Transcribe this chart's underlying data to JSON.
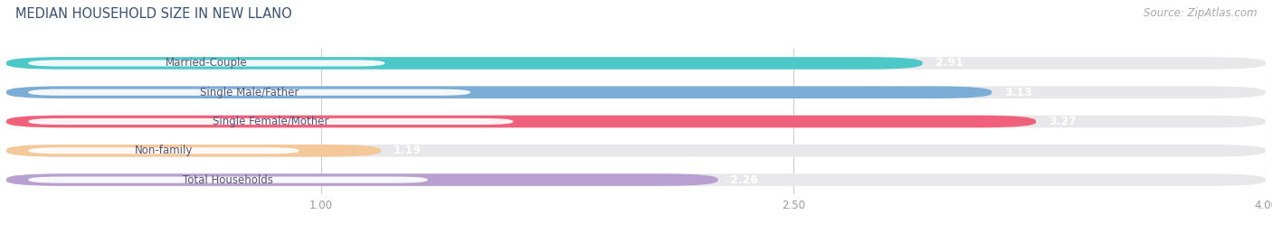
{
  "title": "MEDIAN HOUSEHOLD SIZE IN NEW LLANO",
  "source": "Source: ZipAtlas.com",
  "categories": [
    "Married-Couple",
    "Single Male/Father",
    "Single Female/Mother",
    "Non-family",
    "Total Households"
  ],
  "values": [
    2.91,
    3.13,
    3.27,
    1.19,
    2.26
  ],
  "bar_colors": [
    "#4dc8c8",
    "#7badd6",
    "#f0607a",
    "#f5c89a",
    "#b8a0d0"
  ],
  "bar_bg_color": "#e8e8ea",
  "label_text_color": "#555577",
  "value_color": "#ffffff",
  "xlim": [
    0,
    4.0
  ],
  "xticks": [
    1.0,
    2.5,
    4.0
  ],
  "title_fontsize": 10.5,
  "source_fontsize": 8.5,
  "label_fontsize": 8.5,
  "value_fontsize": 9,
  "background_color": "#ffffff",
  "grid_color": "#cccccc"
}
